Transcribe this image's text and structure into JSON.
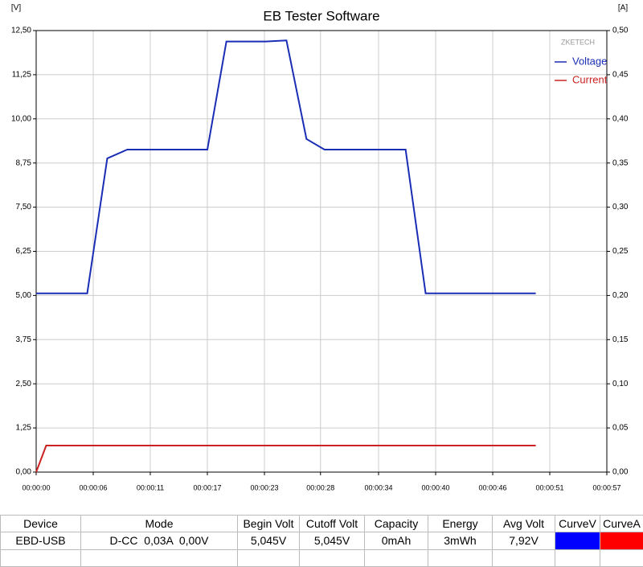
{
  "chart_data": {
    "type": "line",
    "title": "EB Tester Software",
    "y_label": "[V]",
    "y2_label": "[A]",
    "annotation": "ZKETECH",
    "xlim": [
      0,
      57
    ],
    "xticks": [
      {
        "value": 0,
        "label": "00:00:00"
      },
      {
        "value": 5.7,
        "label": "00:00:06"
      },
      {
        "value": 11.4,
        "label": "00:00:11"
      },
      {
        "value": 17.1,
        "label": "00:00:17"
      },
      {
        "value": 22.8,
        "label": "00:00:23"
      },
      {
        "value": 28.4,
        "label": "00:00:28"
      },
      {
        "value": 34.2,
        "label": "00:00:34"
      },
      {
        "value": 39.9,
        "label": "00:00:40"
      },
      {
        "value": 45.6,
        "label": "00:00:46"
      },
      {
        "value": 51.3,
        "label": "00:00:51"
      },
      {
        "value": 57,
        "label": "00:00:57"
      }
    ],
    "ylim": [
      0,
      12.5
    ],
    "yticks": [
      {
        "value": 0,
        "label": "0,00"
      },
      {
        "value": 1.25,
        "label": "1,25"
      },
      {
        "value": 2.5,
        "label": "2,50"
      },
      {
        "value": 3.75,
        "label": "3,75"
      },
      {
        "value": 5,
        "label": "5,00"
      },
      {
        "value": 6.25,
        "label": "6,25"
      },
      {
        "value": 7.5,
        "label": "7,50"
      },
      {
        "value": 8.75,
        "label": "8,75"
      },
      {
        "value": 10,
        "label": "10,00"
      },
      {
        "value": 11.25,
        "label": "11,25"
      },
      {
        "value": 12.5,
        "label": "12,50"
      }
    ],
    "y2lim": [
      0,
      0.5
    ],
    "y2ticks": [
      {
        "value": 0,
        "label": "0,00"
      },
      {
        "value": 0.05,
        "label": "0,05"
      },
      {
        "value": 0.1,
        "label": "0,10"
      },
      {
        "value": 0.15,
        "label": "0,15"
      },
      {
        "value": 0.2,
        "label": "0,20"
      },
      {
        "value": 0.25,
        "label": "0,25"
      },
      {
        "value": 0.3,
        "label": "0,30"
      },
      {
        "value": 0.35,
        "label": "0,35"
      },
      {
        "value": 0.4,
        "label": "0,40"
      },
      {
        "value": 0.45,
        "label": "0,45"
      },
      {
        "value": 0.5,
        "label": "0,50"
      }
    ],
    "grid": true,
    "series": [
      {
        "name": "Voltage",
        "color": "#1a2db5",
        "x": [
          0,
          5.1,
          7.1,
          9.1,
          17.1,
          19.0,
          22.9,
          25.0,
          27.0,
          28.8,
          36.9,
          38.9,
          49.9
        ],
        "values": [
          5.06,
          5.06,
          8.88,
          9.13,
          9.13,
          12.19,
          12.19,
          12.22,
          9.43,
          9.13,
          9.13,
          5.06,
          5.06
        ]
      },
      {
        "name": "Current",
        "color": "#cc2222",
        "axis": "y2",
        "x": [
          0,
          1.0,
          49.9
        ],
        "values": [
          0,
          0.03,
          0.03
        ]
      }
    ]
  },
  "table": {
    "columns": [
      "Device",
      "Mode",
      "Begin Volt",
      "Cutoff Volt",
      "Capacity",
      "Energy",
      "Avg Volt",
      "CurveV",
      "CurveA"
    ],
    "rows": [
      [
        "EBD-USB",
        "D-CC  0,03A  0,00V",
        "5,045V",
        "5,045V",
        "0mAh",
        "3mWh",
        "7,92V"
      ]
    ],
    "curve_colors": [
      "#0000ff",
      "#ff0000"
    ]
  }
}
